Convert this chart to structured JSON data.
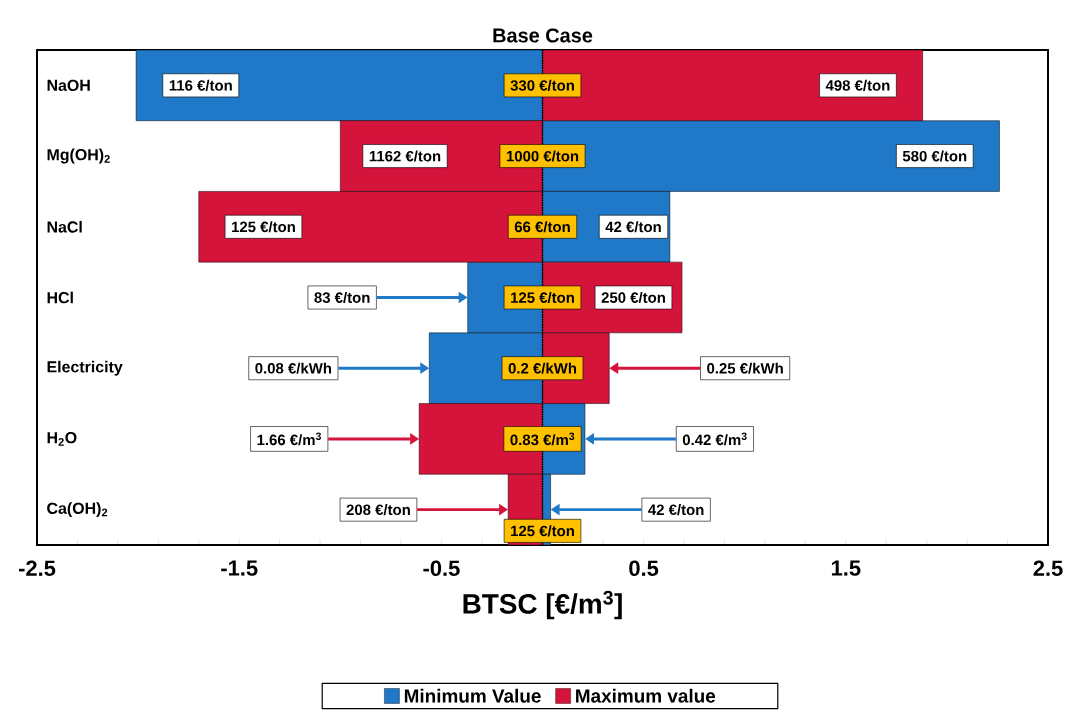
{
  "chart_data": {
    "type": "bar",
    "orientation": "horizontal",
    "stacked": true,
    "title": "Base Case",
    "xlabel": "BTSC [€/m$^{3}$]",
    "categories": [
      "NaOH",
      "Mg(OH)$_{2}$",
      "NaCl",
      "HCl",
      "Electricity",
      "H$_{2}$O",
      "Ca(OH)$_{2}$"
    ],
    "series": [
      {
        "name": "Minimum Value",
        "color": "#1f78c8",
        "values": [
          -2.01,
          2.26,
          0.63,
          -0.37,
          -0.56,
          0.21,
          0.04
        ]
      },
      {
        "name": "Maximum value",
        "color": "#d5143c",
        "values": [
          1.88,
          -1.0,
          -1.7,
          0.69,
          0.33,
          -0.61,
          -0.17
        ]
      }
    ],
    "annotations": [
      {
        "text": "116 €/ton",
        "x": -2.01,
        "y": "NaOH"
      },
      {
        "text": "330 €/ton",
        "x": 0,
        "y": "NaOH"
      },
      {
        "text": "498 €/ton",
        "x": 1.88,
        "y": "NaOH"
      },
      {
        "text": "1162 €/ton",
        "x": -1.0,
        "y": "Mg(OH)$_{2}$"
      },
      {
        "text": "1000 €/ton",
        "x": 0,
        "y": "Mg(OH)$_{2}$"
      },
      {
        "text": "580 €/ton",
        "x": 2.26,
        "y": "Mg(OH)$_{2}$"
      },
      {
        "text": "125 €/ton",
        "x": -1.7,
        "y": "NaCl"
      },
      {
        "text": "66 €/ton",
        "x": 0,
        "y": "NaCl"
      },
      {
        "text": "42 €/ton",
        "x": 0.63,
        "y": "NaCl"
      },
      {
        "text": "83 €/ton",
        "x": -0.37,
        "y": "HCl"
      },
      {
        "text": "125 €/ton",
        "x": 0,
        "y": "HCl"
      },
      {
        "text": "250 €/ton",
        "x": 0.69,
        "y": "HCl"
      },
      {
        "text": "0.08 €/kWh",
        "x": -0.56,
        "y": "Electricity"
      },
      {
        "text": "0.2 €/kWh",
        "x": 0,
        "y": "Electricity"
      },
      {
        "text": "0.25 €/kWh",
        "x": 0.33,
        "y": "Electricity"
      },
      {
        "text": "1.66 €/m$^{3}$",
        "x": -0.61,
        "y": "H$_{2}$O"
      },
      {
        "text": "0.83 €/m$^{3}$",
        "x": 0,
        "y": "H$_{2}$O"
      },
      {
        "text": "0.42 €/m$^{3}$",
        "x": 0.21,
        "y": "H$_{2}$O"
      },
      {
        "text": "208 €/ton",
        "x": -0.17,
        "y": "Ca(OH)$_{2}$"
      },
      {
        "text": "125 €/ton",
        "x": 0,
        "y": "Ca(OH)$_{2}$"
      },
      {
        "text": "42 €/ton",
        "x": 0.04,
        "y": "Ca(OH)$_{2}$"
      }
    ],
    "ref_lines": [
      {
        "axis": "x",
        "value": 0,
        "line_style": "dotted"
      }
    ],
    "xlim": [
      -2.5,
      2.5
    ],
    "xticks": [
      -2.5,
      {
        "value": -2.3,
        "label": null
      },
      {
        "value": -2.1,
        "label": null
      },
      {
        "value": -1.9,
        "label": null
      },
      {
        "value": -1.7,
        "label": null
      },
      -1.5,
      {
        "value": -1.3,
        "label": null
      },
      {
        "value": -1.1,
        "label": null
      },
      {
        "value": -0.9,
        "label": null
      },
      {
        "value": -0.7,
        "label": null
      },
      -0.5,
      {
        "value": -0.3,
        "label": null
      },
      {
        "value": -0.1,
        "label": null
      },
      {
        "value": 0.1,
        "label": null
      },
      {
        "value": 0.3,
        "label": null
      },
      0.5,
      {
        "value": 0.7,
        "label": null
      },
      {
        "value": 0.9,
        "label": null
      },
      {
        "value": 1.1,
        "label": null
      },
      {
        "value": 1.3,
        "label": null
      },
      1.5,
      {
        "value": 1.7,
        "label": null
      },
      {
        "value": 1.9,
        "label": null
      },
      {
        "value": 2.1,
        "label": null
      },
      {
        "value": 2.3,
        "label": null
      },
      2.5
    ],
    "grid": false,
    "legend": "bottom"
  }
}
